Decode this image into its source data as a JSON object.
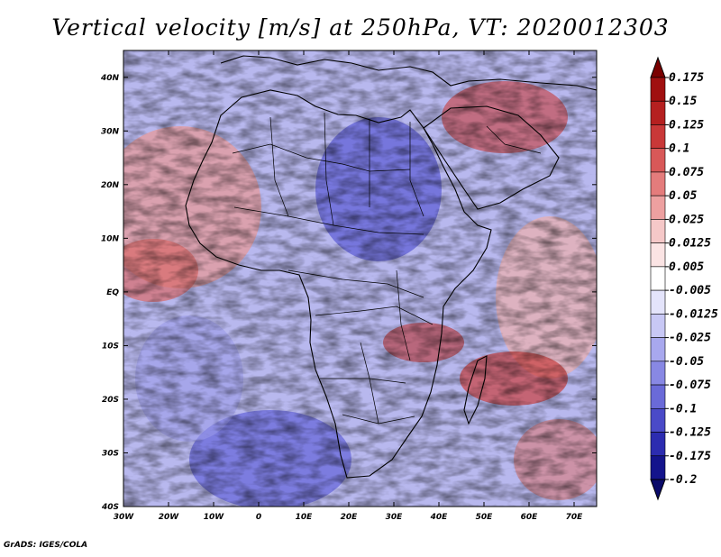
{
  "title": "Vertical velocity [m/s] at 250hPa, VT: 2020012303",
  "credit": "GrADS: IGES/COLA",
  "map": {
    "lon_range": [
      -30,
      75
    ],
    "lat_range": [
      -40,
      45
    ],
    "lon_ticks": [
      {
        "value": -30,
        "label": "30W"
      },
      {
        "value": -20,
        "label": "20W"
      },
      {
        "value": -10,
        "label": "10W"
      },
      {
        "value": 0,
        "label": "0"
      },
      {
        "value": 10,
        "label": "10E"
      },
      {
        "value": 20,
        "label": "20E"
      },
      {
        "value": 30,
        "label": "30E"
      },
      {
        "value": 40,
        "label": "40E"
      },
      {
        "value": 50,
        "label": "50E"
      },
      {
        "value": 60,
        "label": "60E"
      },
      {
        "value": 70,
        "label": "70E"
      }
    ],
    "lat_ticks": [
      {
        "value": 40,
        "label": "40N"
      },
      {
        "value": 30,
        "label": "30N"
      },
      {
        "value": 20,
        "label": "20N"
      },
      {
        "value": 10,
        "label": "10N"
      },
      {
        "value": 0,
        "label": "EQ"
      },
      {
        "value": -10,
        "label": "10S"
      },
      {
        "value": -20,
        "label": "20S"
      },
      {
        "value": -30,
        "label": "30S"
      },
      {
        "value": -40,
        "label": "40S"
      }
    ]
  },
  "colorbar": {
    "labels": [
      "0.175",
      "0.15",
      "0.125",
      "0.1",
      "0.075",
      "0.05",
      "0.025",
      "0.0125",
      "0.005",
      "-0.005",
      "-0.0125",
      "-0.025",
      "-0.05",
      "-0.075",
      "-0.1",
      "-0.125",
      "-0.175",
      "-0.2"
    ],
    "colors": [
      "#7a0000",
      "#a01010",
      "#b52020",
      "#c93838",
      "#d85858",
      "#e47c7c",
      "#eda0a0",
      "#f5c8c8",
      "#fbe4e4",
      "#ffffff",
      "#e4e4fb",
      "#c8c8f5",
      "#a8a8ee",
      "#8888e4",
      "#6a6ad8",
      "#4a4ac8",
      "#2c2cb0",
      "#14148c",
      "#0a0a6a"
    ]
  }
}
